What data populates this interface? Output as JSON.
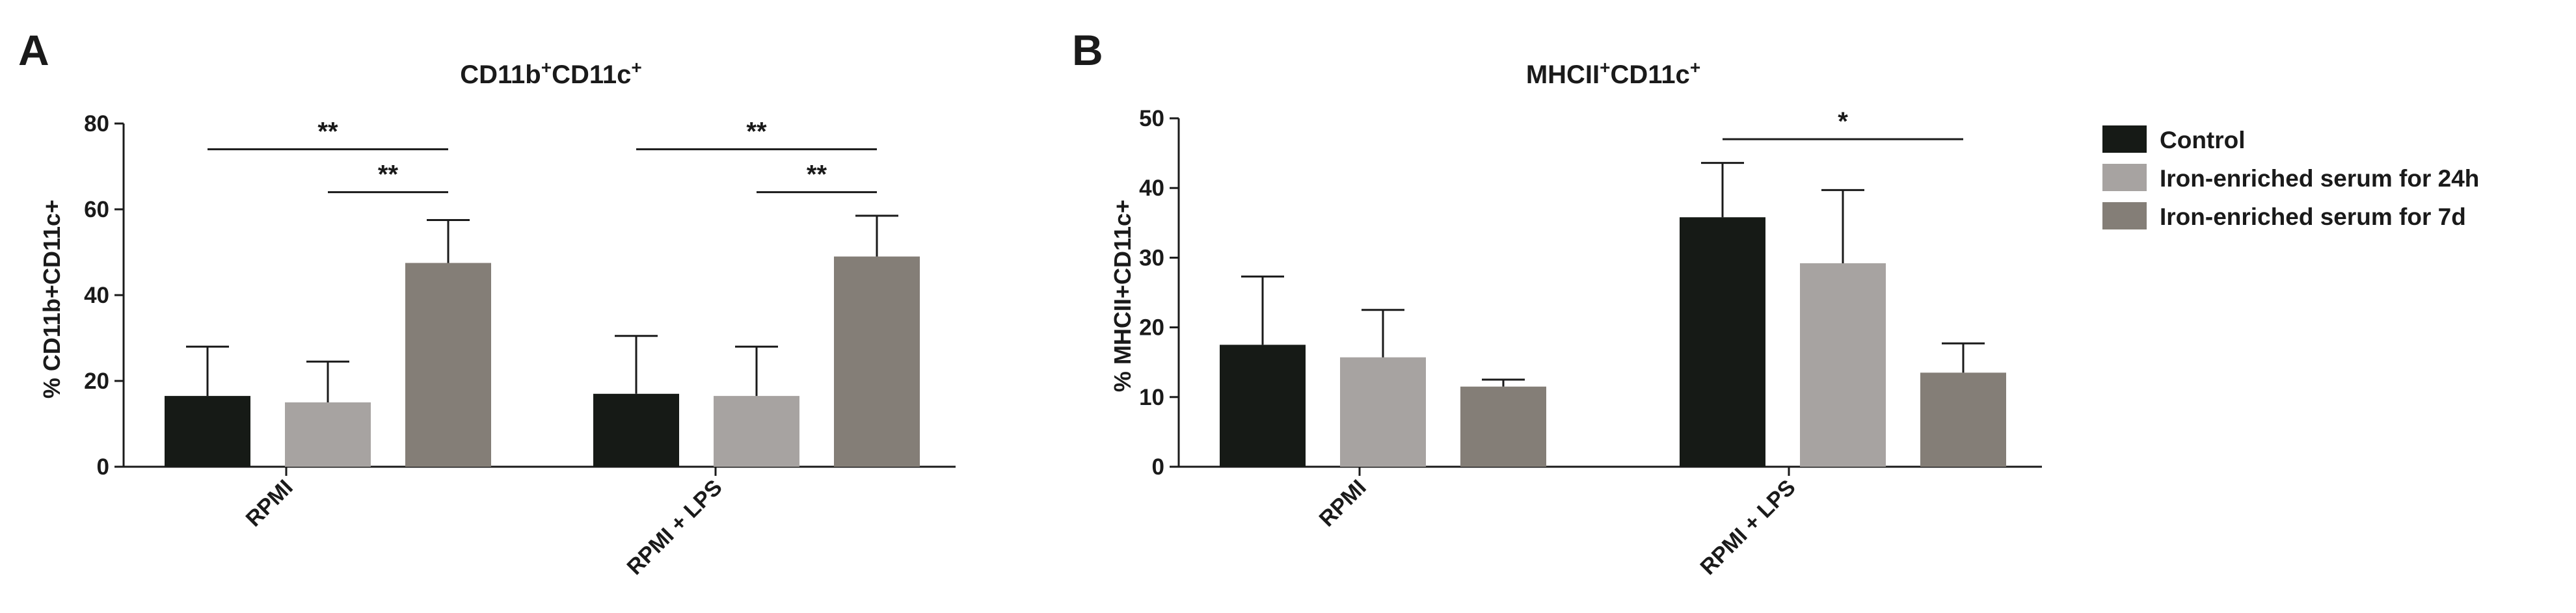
{
  "panels": [
    {
      "letter": "A",
      "title_main": "CD11b",
      "title_sup1": "+",
      "title_mid": "CD11c",
      "title_sup2": "+",
      "ylabel": "% CD11b+CD11c+"
    },
    {
      "letter": "B",
      "title_main": "MHCII",
      "title_sup1": "+",
      "title_mid": "CD11c",
      "title_sup2": "+",
      "ylabel": "% MHCII+CD11c+"
    }
  ],
  "legend": [
    {
      "label": "Control",
      "color": "#161a16"
    },
    {
      "label": "Iron-enriched serum for 24h",
      "color": "#a7a3a1"
    },
    {
      "label": "Iron-enriched serum for 7d",
      "color": "#847e77"
    }
  ],
  "chart_data": [
    {
      "type": "bar",
      "title": "CD11b+CD11c+",
      "ylabel": "% CD11b+CD11c+",
      "categories": [
        "RPMI",
        "RPMI + LPS"
      ],
      "ylim": [
        0,
        80
      ],
      "yticks": [
        0,
        20,
        40,
        60,
        80
      ],
      "series": [
        {
          "name": "Control",
          "values": [
            16.5,
            17
          ],
          "errors": [
            11.5,
            13.5
          ]
        },
        {
          "name": "Iron-enriched serum for 24h",
          "values": [
            15,
            16.5
          ],
          "errors": [
            9.5,
            11.5
          ]
        },
        {
          "name": "Iron-enriched serum for 7d",
          "values": [
            47.5,
            49
          ],
          "errors": [
            10,
            9.5
          ]
        }
      ],
      "significance": [
        {
          "group": 0,
          "from": 0,
          "to": 2,
          "label": "**",
          "y": 74
        },
        {
          "group": 0,
          "from": 1,
          "to": 2,
          "label": "**",
          "y": 64
        },
        {
          "group": 1,
          "from": 0,
          "to": 2,
          "label": "**",
          "y": 74
        },
        {
          "group": 1,
          "from": 1,
          "to": 2,
          "label": "**",
          "y": 64
        }
      ]
    },
    {
      "type": "bar",
      "title": "MHCII+CD11c+",
      "ylabel": "% MHCII+CD11c+",
      "categories": [
        "RPMI",
        "RPMI + LPS"
      ],
      "ylim": [
        0,
        50
      ],
      "yticks": [
        0,
        10,
        20,
        30,
        40,
        50
      ],
      "series": [
        {
          "name": "Control",
          "values": [
            17.5,
            35.8
          ],
          "errors": [
            9.8,
            7.8
          ]
        },
        {
          "name": "Iron-enriched serum for 24h",
          "values": [
            15.7,
            29.2
          ],
          "errors": [
            6.8,
            10.5
          ]
        },
        {
          "name": "Iron-enriched serum for 7d",
          "values": [
            11.5,
            13.5
          ],
          "errors": [
            1,
            4.2
          ]
        }
      ],
      "significance": [
        {
          "group": 1,
          "from": 0,
          "to": 2,
          "label": "*",
          "y": 47
        }
      ]
    }
  ]
}
